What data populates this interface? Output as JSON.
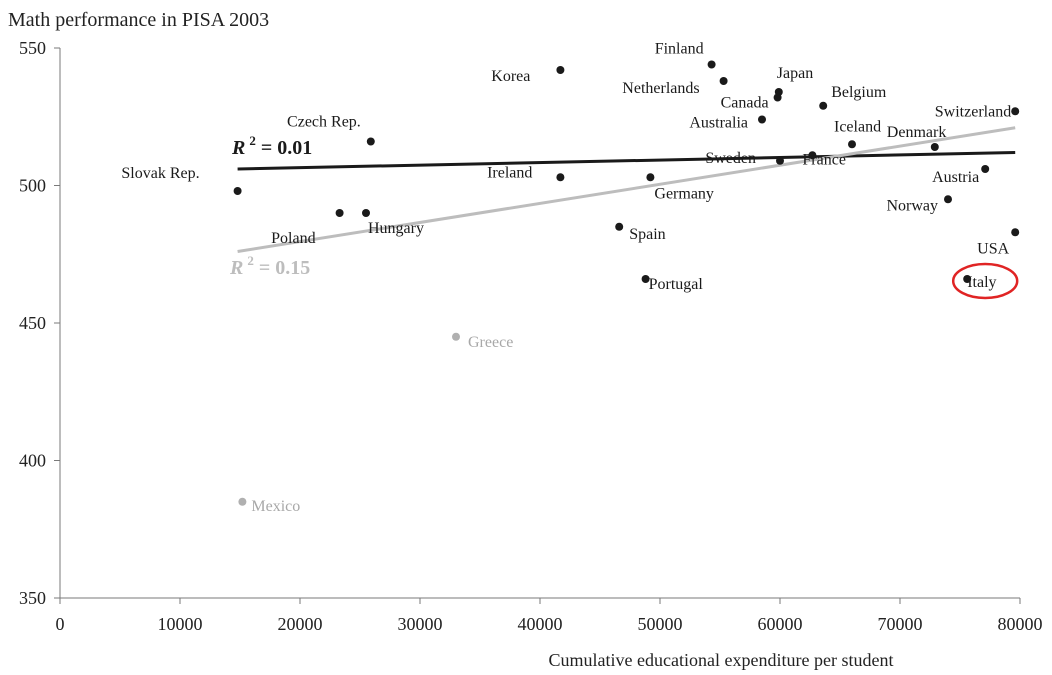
{
  "chart_data": {
    "type": "scatter",
    "title": "Math performance in PISA 2003",
    "xlabel": "Cumulative educational expenditure per student",
    "ylabel": "",
    "xlim": [
      0,
      80000
    ],
    "ylim": [
      350,
      550
    ],
    "x_ticks": [
      0,
      10000,
      20000,
      30000,
      40000,
      50000,
      60000,
      70000,
      80000
    ],
    "y_ticks": [
      350,
      400,
      450,
      500,
      550
    ],
    "grid": false,
    "points": [
      {
        "label": "Slovak Rep.",
        "x": 14800,
        "y": 498,
        "color": "#1a1a1a"
      },
      {
        "label": "Czech Rep.",
        "x": 25900,
        "y": 516,
        "color": "#1a1a1a"
      },
      {
        "label": "Poland",
        "x": 23300,
        "y": 490,
        "color": "#1a1a1a"
      },
      {
        "label": "Hungary",
        "x": 25500,
        "y": 490,
        "color": "#1a1a1a"
      },
      {
        "label": "Korea",
        "x": 41700,
        "y": 542,
        "color": "#1a1a1a"
      },
      {
        "label": "Ireland",
        "x": 41700,
        "y": 503,
        "color": "#1a1a1a"
      },
      {
        "label": "Greece",
        "x": 33000,
        "y": 445,
        "color": "#b0b0b0"
      },
      {
        "label": "Mexico",
        "x": 15200,
        "y": 385,
        "color": "#b0b0b0"
      },
      {
        "label": "Spain",
        "x": 46600,
        "y": 485,
        "color": "#1a1a1a"
      },
      {
        "label": "Portugal",
        "x": 48800,
        "y": 466,
        "color": "#1a1a1a"
      },
      {
        "label": "Germany",
        "x": 49200,
        "y": 503,
        "color": "#1a1a1a"
      },
      {
        "label": "Finland",
        "x": 54300,
        "y": 544,
        "color": "#1a1a1a"
      },
      {
        "label": "Netherlands",
        "x": 55300,
        "y": 538,
        "color": "#1a1a1a"
      },
      {
        "label": "Australia",
        "x": 58500,
        "y": 524,
        "color": "#1a1a1a"
      },
      {
        "label": "Canada",
        "x": 59800,
        "y": 532,
        "color": "#1a1a1a"
      },
      {
        "label": "Japan",
        "x": 59900,
        "y": 534,
        "color": "#1a1a1a"
      },
      {
        "label": "Sweden",
        "x": 60000,
        "y": 509,
        "color": "#1a1a1a"
      },
      {
        "label": "France",
        "x": 62700,
        "y": 511,
        "color": "#1a1a1a"
      },
      {
        "label": "Belgium",
        "x": 63600,
        "y": 529,
        "color": "#1a1a1a"
      },
      {
        "label": "Iceland",
        "x": 66000,
        "y": 515,
        "color": "#1a1a1a"
      },
      {
        "label": "Denmark",
        "x": 72900,
        "y": 514,
        "color": "#1a1a1a"
      },
      {
        "label": "Norway",
        "x": 74000,
        "y": 495,
        "color": "#1a1a1a"
      },
      {
        "label": "Austria",
        "x": 77100,
        "y": 506,
        "color": "#1a1a1a"
      },
      {
        "label": "Italy",
        "x": 75600,
        "y": 466,
        "color": "#1a1a1a",
        "highlight": true
      },
      {
        "label": "Switzerland",
        "x": 79600,
        "y": 527,
        "color": "#1a1a1a"
      },
      {
        "label": "USA",
        "x": 79600,
        "y": 483,
        "color": "#1a1a1a"
      }
    ],
    "trendlines": [
      {
        "label": "R² = 0.01",
        "r2_text": "= 0.01",
        "x": [
          14800,
          79600
        ],
        "y": [
          506,
          512
        ],
        "color": "#1a1a1a"
      },
      {
        "label": "R² = 0.15",
        "r2_text": "= 0.15",
        "x": [
          14800,
          79600
        ],
        "y": [
          476,
          521
        ],
        "color": "#bdbdbd"
      }
    ],
    "highlight_color": "#e02424"
  }
}
